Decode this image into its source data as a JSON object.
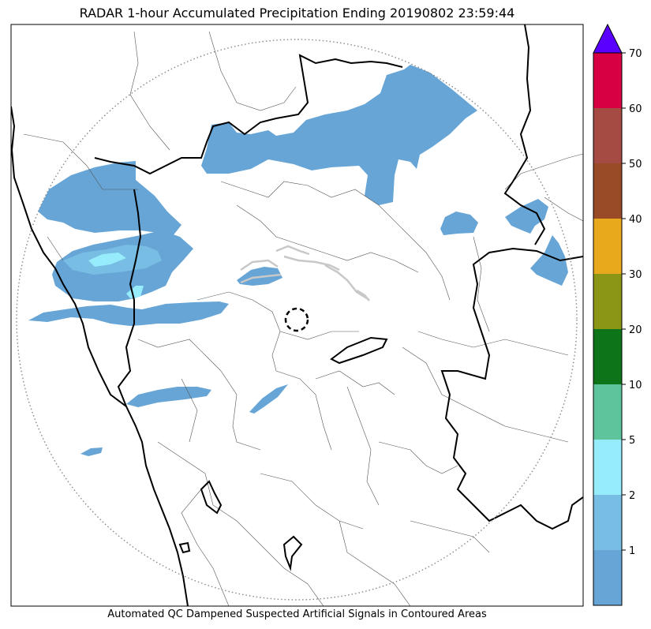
{
  "title": "RADAR 1-hour Accumulated Precipitation Ending 20190802 23:59:44",
  "caption": "Automated QC Dampened Suspected Artificial Signals in Contoured Areas",
  "colorbar": {
    "levels": [
      {
        "label": "",
        "color": "#66a5d6"
      },
      {
        "label": "1",
        "color": "#78bde3"
      },
      {
        "label": "2",
        "color": "#96ecfb"
      },
      {
        "label": "5",
        "color": "#5ec49c"
      },
      {
        "label": "10",
        "color": "#0e7419"
      },
      {
        "label": "20",
        "color": "#8c9616"
      },
      {
        "label": "30",
        "color": "#e8a91c"
      },
      {
        "label": "40",
        "color": "#984b26"
      },
      {
        "label": "50",
        "color": "#a64a44"
      },
      {
        "label": "60",
        "color": "#d70043"
      }
    ],
    "top_label": "70",
    "extend_color": "#5a00ff"
  },
  "colors": {
    "rain_light": "#66a5d6",
    "rain_medium": "#78bde3",
    "rain_heavy": "#96ecfb",
    "qc_contour": "#c8c8c8"
  }
}
